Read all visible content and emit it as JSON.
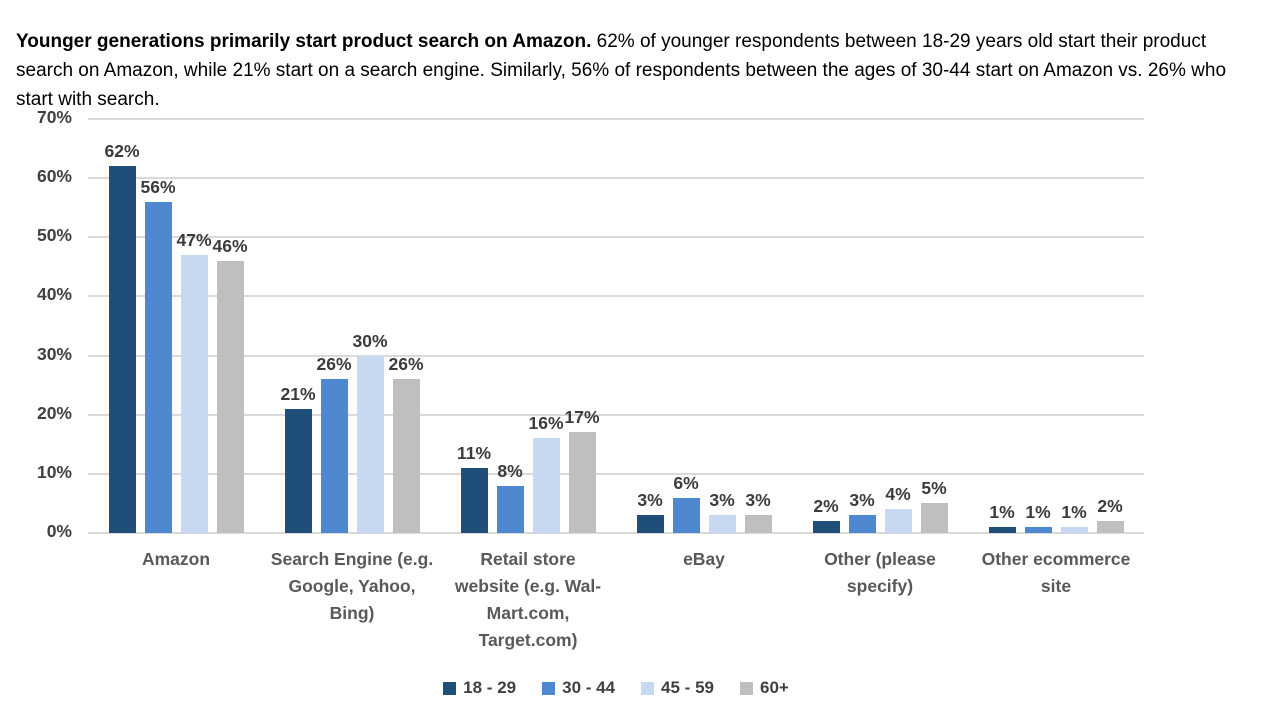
{
  "header": {
    "title_bold": "Younger generations primarily start product search on Amazon.",
    "title_rest": " 62% of younger respondents between 18-29 years old start their product search on Amazon, while 21% start on a search engine. Similarly, 56% of respondents between the ages of 30-44 start on Amazon vs. 26% who start with search."
  },
  "chart_data": {
    "type": "bar",
    "title": "",
    "categories": [
      "Amazon",
      "Search Engine (e.g.\nGoogle, Yahoo,\nBing)",
      "Retail store\nwebsite (e.g. Wal-\nMart.com,\nTarget.com)",
      "eBay",
      "Other (please\nspecify)",
      "Other ecommerce\nsite"
    ],
    "series": [
      {
        "name": "18 - 29",
        "color": "#1f4e79",
        "values": [
          62,
          21,
          11,
          3,
          2,
          1
        ]
      },
      {
        "name": "30 - 44",
        "color": "#4f88ce",
        "values": [
          56,
          26,
          8,
          6,
          3,
          1
        ]
      },
      {
        "name": "45 - 59",
        "color": "#c7d9f0",
        "values": [
          47,
          30,
          16,
          3,
          4,
          1
        ]
      },
      {
        "name": "60+",
        "color": "#bfbfbf",
        "values": [
          46,
          26,
          17,
          3,
          5,
          2
        ]
      }
    ],
    "value_label_suffix": "%",
    "y_ticks": [
      "0%",
      "10%",
      "20%",
      "30%",
      "40%",
      "50%",
      "60%",
      "70%"
    ],
    "ylim": [
      0,
      70
    ],
    "grid": true,
    "gridline_color": "#d9d9d9",
    "legend_position": "bottom"
  }
}
